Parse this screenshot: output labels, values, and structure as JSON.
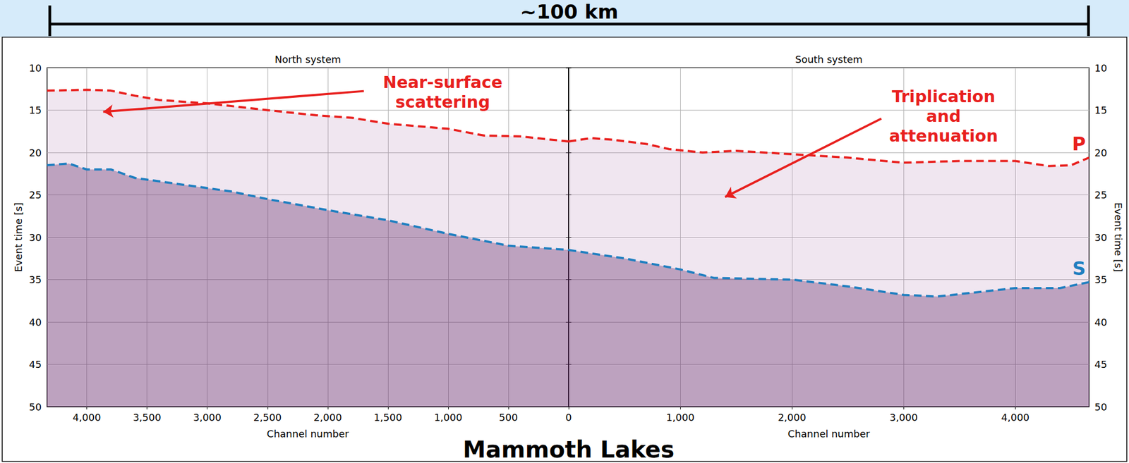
{
  "chart_data": {
    "type": "line",
    "title": "Mammoth Lakes",
    "scale_bar": "~100 km",
    "panels": [
      {
        "title": "North system",
        "xlabel": "Channel number",
        "ylabel": "Event time [s]",
        "xlim": [
          4330,
          0
        ],
        "xticks": [
          4000,
          3500,
          3000,
          2500,
          2000,
          1500,
          1000,
          500
        ],
        "ylim": [
          10,
          50
        ],
        "yticks": [
          10,
          15,
          20,
          25,
          30,
          35,
          40,
          45,
          50
        ],
        "grid": true,
        "series": [
          {
            "color": "#e8201e",
            "line_style": "dashed",
            "x": [
              4330,
              4000,
              3800,
              3600,
              3400,
              3000,
              2500,
              2100,
              1800,
              1500,
              1000,
              700,
              400,
              200,
              0
            ],
            "values": [
              12.7,
              12.6,
              12.7,
              13.3,
              13.8,
              14.2,
              15.0,
              15.6,
              15.9,
              16.6,
              17.2,
              18.0,
              18.1,
              18.4,
              18.7
            ]
          },
          {
            "color": "#1f7fc0",
            "line_style": "dashed",
            "x": [
              4330,
              4150,
              4000,
              3800,
              3600,
              3200,
              2800,
              2500,
              2000,
              1500,
              1000,
              500,
              0
            ],
            "values": [
              21.5,
              21.3,
              22.0,
              22.0,
              23.0,
              23.8,
              24.6,
              25.5,
              26.8,
              28.0,
              29.6,
              31.0,
              31.5
            ]
          }
        ],
        "annotations": [
          {
            "text": "Near-surface\nscattering",
            "color": "#e8201e",
            "x": 1045,
            "y": 12.9,
            "arrow_from": [
              1700,
              12.75
            ],
            "arrow_to": [
              3864,
              15.2
            ]
          }
        ]
      },
      {
        "title": "South system",
        "xlabel": "Channel number",
        "ylabel": "Event time [s]",
        "xlim": [
          0,
          4660
        ],
        "xticks": [
          0,
          1000,
          2000,
          3000,
          4000
        ],
        "ylim": [
          10,
          50
        ],
        "yticks": [
          10,
          15,
          20,
          25,
          30,
          35,
          40,
          45,
          50
        ],
        "grid": true,
        "series": [
          {
            "name": "P",
            "color": "#e8201e",
            "line_style": "dashed",
            "x": [
              0,
              200,
              400,
              700,
              900,
              1200,
              1500,
              2000,
              2500,
              3000,
              3500,
              4000,
              4300,
              4500,
              4660
            ],
            "values": [
              18.7,
              18.3,
              18.5,
              19.0,
              19.6,
              20.0,
              19.8,
              20.2,
              20.6,
              21.2,
              21.0,
              21.0,
              21.6,
              21.5,
              20.6
            ]
          },
          {
            "name": "S",
            "color": "#1f7fc0",
            "line_style": "dashed",
            "x": [
              0,
              500,
              1000,
              1300,
              2000,
              2500,
              3000,
              3300,
              4000,
              4400,
              4660
            ],
            "values": [
              31.5,
              32.5,
              33.8,
              34.8,
              35.0,
              35.8,
              36.8,
              37.0,
              36.0,
              36.0,
              35.3
            ]
          }
        ],
        "annotations": [
          {
            "text": "Triplication\nand\nattenuation",
            "color": "#e8201e",
            "x": 3357,
            "y": 15.7,
            "arrow_from": [
              2800,
              16.0
            ],
            "arrow_to": [
              1401,
              25.25
            ]
          }
        ]
      }
    ]
  }
}
